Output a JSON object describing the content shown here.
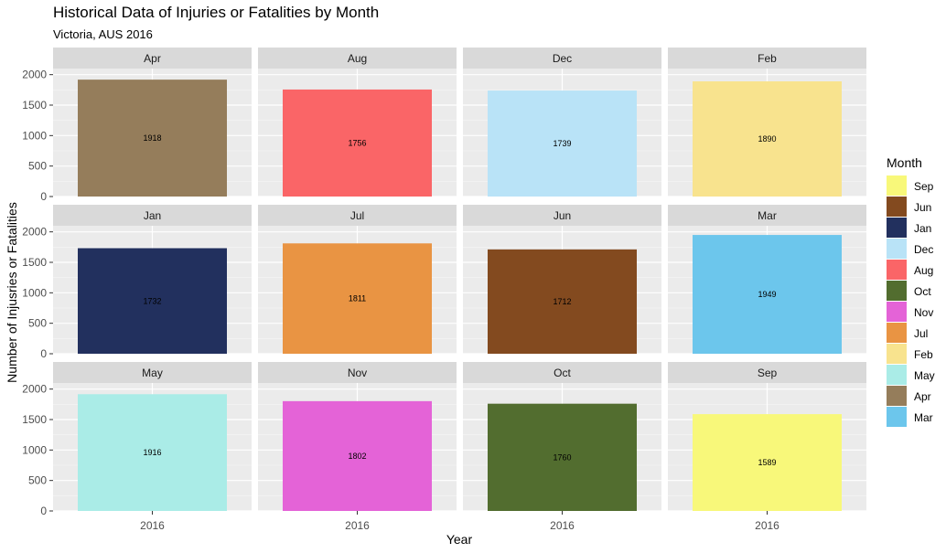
{
  "chart_data": {
    "type": "bar",
    "layout": "faceted",
    "title": "Historical Data of Injuries or Fatalities by Month",
    "subtitle": "Victoria, AUS 2016",
    "xlabel": "Year",
    "ylabel": "Number of Injusries or Fatalities",
    "categories": [
      "2016"
    ],
    "ylim": [
      0,
      2100
    ],
    "yticks": [
      0,
      500,
      1000,
      1500,
      2000
    ],
    "grid": true,
    "legend": {
      "title": "Month",
      "position": "right",
      "items": [
        {
          "label": "Sep",
          "color": "#f8f87a"
        },
        {
          "label": "Jun",
          "color": "#834a1f"
        },
        {
          "label": "Jan",
          "color": "#22305e"
        },
        {
          "label": "Dec",
          "color": "#b9e3f7"
        },
        {
          "label": "Aug",
          "color": "#fa6567"
        },
        {
          "label": "Oct",
          "color": "#526d2f"
        },
        {
          "label": "Nov",
          "color": "#e463d7"
        },
        {
          "label": "Jul",
          "color": "#e99443"
        },
        {
          "label": "Feb",
          "color": "#f8e38e"
        },
        {
          "label": "May",
          "color": "#aaece7"
        },
        {
          "label": "Apr",
          "color": "#957d5b"
        },
        {
          "label": "Mar",
          "color": "#6cc6ec"
        }
      ]
    },
    "panels": [
      {
        "name": "Apr",
        "value": 1918,
        "label": "1918",
        "color": "#957d5b"
      },
      {
        "name": "Aug",
        "value": 1756,
        "label": "1756",
        "color": "#fa6567"
      },
      {
        "name": "Dec",
        "value": 1739,
        "label": "1739",
        "color": "#b9e3f7"
      },
      {
        "name": "Feb",
        "value": 1890,
        "label": "1890",
        "color": "#f8e38e"
      },
      {
        "name": "Jan",
        "value": 1732,
        "label": "1732",
        "color": "#22305e"
      },
      {
        "name": "Jul",
        "value": 1811,
        "label": "1811",
        "color": "#e99443"
      },
      {
        "name": "Jun",
        "value": 1712,
        "label": "1712",
        "color": "#834a1f"
      },
      {
        "name": "Mar",
        "value": 1949,
        "label": "1949",
        "color": "#6cc6ec"
      },
      {
        "name": "May",
        "value": 1916,
        "label": "1916",
        "color": "#aaece7"
      },
      {
        "name": "Nov",
        "value": 1802,
        "label": "1802",
        "color": "#e463d7"
      },
      {
        "name": "Oct",
        "value": 1760,
        "label": "1760",
        "color": "#526d2f"
      },
      {
        "name": "Sep",
        "value": 1589,
        "label": "1589",
        "color": "#f8f87a"
      }
    ]
  }
}
